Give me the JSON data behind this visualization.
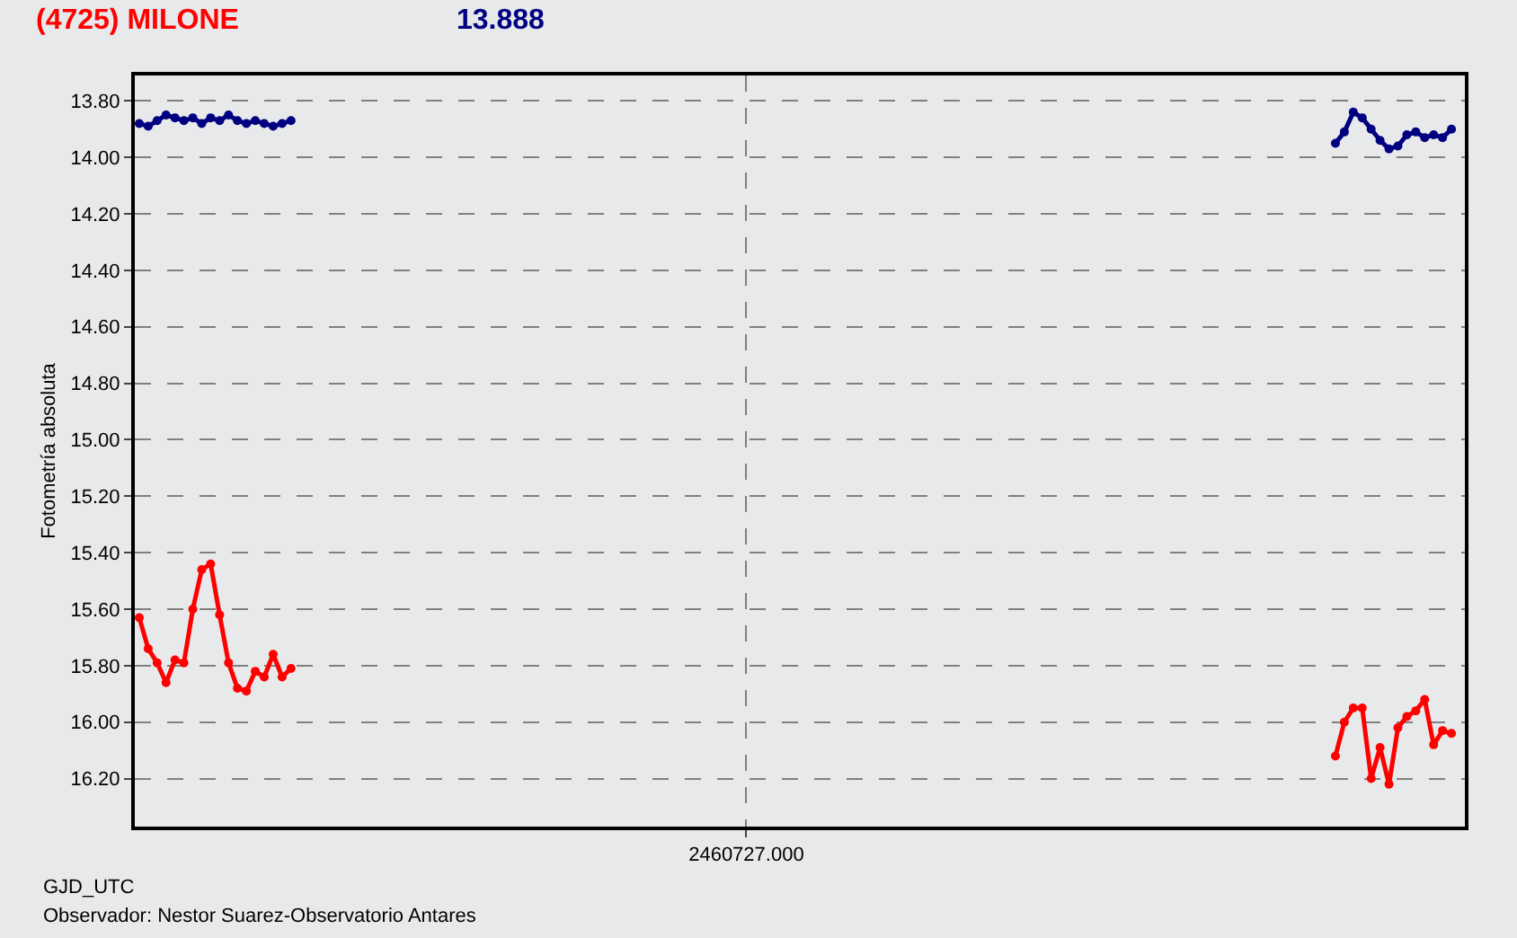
{
  "chart_data": {
    "type": "line",
    "title": "(4725) MILONE",
    "subtitle": "13.888",
    "xlabel": "GJD_UTC",
    "ylabel": "Fotometría absoluta",
    "annotations": [
      "Observador: Nestor Suarez-Observatorio Antares"
    ],
    "categories": [
      null,
      null,
      null,
      null,
      null,
      null,
      null,
      null,
      null,
      null,
      null,
      null,
      null,
      null,
      null,
      null,
      null,
      null,
      null,
      null,
      null,
      null,
      null,
      null,
      null,
      null,
      null,
      null,
      null,
      null,
      null,
      null,
      null,
      null,
      null,
      null,
      null,
      null,
      null,
      null,
      null,
      null,
      null,
      null,
      null,
      null,
      null,
      null,
      null,
      null,
      null,
      null,
      null,
      null,
      null,
      null,
      null,
      null,
      null,
      null,
      null,
      null,
      null,
      null,
      null,
      null,
      null,
      null,
      "2460727.000",
      null,
      null,
      null,
      null,
      null,
      null,
      null,
      null,
      null,
      null,
      null,
      null,
      null,
      null,
      null,
      null,
      null,
      null,
      null,
      null,
      null,
      null,
      null,
      null,
      null,
      null,
      null,
      null,
      null,
      null,
      null,
      null,
      null,
      null,
      null,
      null,
      null,
      null,
      null,
      null,
      null,
      null,
      null,
      null,
      null,
      null,
      null,
      null,
      null,
      null,
      null,
      null,
      null,
      null,
      null,
      null,
      null,
      null,
      null,
      null,
      null,
      null,
      null,
      null,
      null,
      null,
      null,
      null,
      null,
      null,
      null,
      null,
      null,
      null,
      null,
      null,
      null,
      null,
      null,
      null
    ],
    "series": [
      {
        "color": "#000080",
        "values": [
          13.88,
          13.89,
          13.87,
          13.85,
          13.86,
          13.87,
          13.86,
          13.88,
          13.86,
          13.87,
          13.85,
          13.87,
          13.88,
          13.87,
          13.88,
          13.89,
          13.88,
          13.87,
          null,
          null,
          null,
          null,
          null,
          null,
          null,
          null,
          null,
          null,
          null,
          null,
          null,
          null,
          null,
          null,
          null,
          null,
          null,
          null,
          null,
          null,
          null,
          null,
          null,
          null,
          null,
          null,
          null,
          null,
          null,
          null,
          null,
          null,
          null,
          null,
          null,
          null,
          null,
          null,
          null,
          null,
          null,
          null,
          null,
          null,
          null,
          null,
          null,
          null,
          null,
          null,
          null,
          null,
          null,
          null,
          null,
          null,
          null,
          null,
          null,
          null,
          null,
          null,
          null,
          null,
          null,
          null,
          null,
          null,
          null,
          null,
          null,
          null,
          null,
          null,
          null,
          null,
          null,
          null,
          null,
          null,
          null,
          null,
          null,
          null,
          null,
          null,
          null,
          null,
          null,
          null,
          null,
          null,
          null,
          null,
          null,
          null,
          null,
          null,
          null,
          null,
          null,
          null,
          null,
          null,
          null,
          null,
          null,
          null,
          null,
          null,
          null,
          null,
          null,
          null,
          13.95,
          13.91,
          13.84,
          13.86,
          13.9,
          13.94,
          13.97,
          13.96,
          13.92,
          13.91,
          13.93,
          13.92,
          13.93,
          13.9,
          null
        ]
      },
      {
        "color": "#ff0000",
        "values": [
          15.63,
          15.74,
          15.79,
          15.86,
          15.78,
          15.79,
          15.6,
          15.46,
          15.44,
          15.62,
          15.79,
          15.88,
          15.89,
          15.82,
          15.84,
          15.76,
          15.84,
          15.81,
          null,
          null,
          null,
          null,
          null,
          null,
          null,
          null,
          null,
          null,
          null,
          null,
          null,
          null,
          null,
          null,
          null,
          null,
          null,
          null,
          null,
          null,
          null,
          null,
          null,
          null,
          null,
          null,
          null,
          null,
          null,
          null,
          null,
          null,
          null,
          null,
          null,
          null,
          null,
          null,
          null,
          null,
          null,
          null,
          null,
          null,
          null,
          null,
          null,
          null,
          null,
          null,
          null,
          null,
          null,
          null,
          null,
          null,
          null,
          null,
          null,
          null,
          null,
          null,
          null,
          null,
          null,
          null,
          null,
          null,
          null,
          null,
          null,
          null,
          null,
          null,
          null,
          null,
          null,
          null,
          null,
          null,
          null,
          null,
          null,
          null,
          null,
          null,
          null,
          null,
          null,
          null,
          null,
          null,
          null,
          null,
          null,
          null,
          null,
          null,
          null,
          null,
          null,
          null,
          null,
          null,
          null,
          null,
          null,
          null,
          null,
          null,
          null,
          null,
          null,
          null,
          16.12,
          16.0,
          15.95,
          15.95,
          16.2,
          16.09,
          16.22,
          16.02,
          15.98,
          15.96,
          15.92,
          16.08,
          16.03,
          16.04,
          null
        ]
      }
    ],
    "ylim": [
      16.37,
      13.71
    ],
    "yticks": [
      {
        "value": 13.8,
        "label": "13.80"
      },
      {
        "value": 14.0,
        "label": "14.00"
      },
      {
        "value": 14.2,
        "label": "14.20"
      },
      {
        "value": 14.4,
        "label": "14.40"
      },
      {
        "value": 14.6,
        "label": "14.60"
      },
      {
        "value": 14.8,
        "label": "14.80"
      },
      {
        "value": 15.0,
        "label": "15.00"
      },
      {
        "value": 15.2,
        "label": "15.20"
      },
      {
        "value": 15.4,
        "label": "15.40"
      },
      {
        "value": 15.6,
        "label": "15.60"
      },
      {
        "value": 15.8,
        "label": "15.80"
      },
      {
        "value": 16.0,
        "label": "16.00"
      },
      {
        "value": 16.2,
        "label": "16.20"
      }
    ],
    "grid": true,
    "marker": "circle",
    "line_style": "solid"
  }
}
